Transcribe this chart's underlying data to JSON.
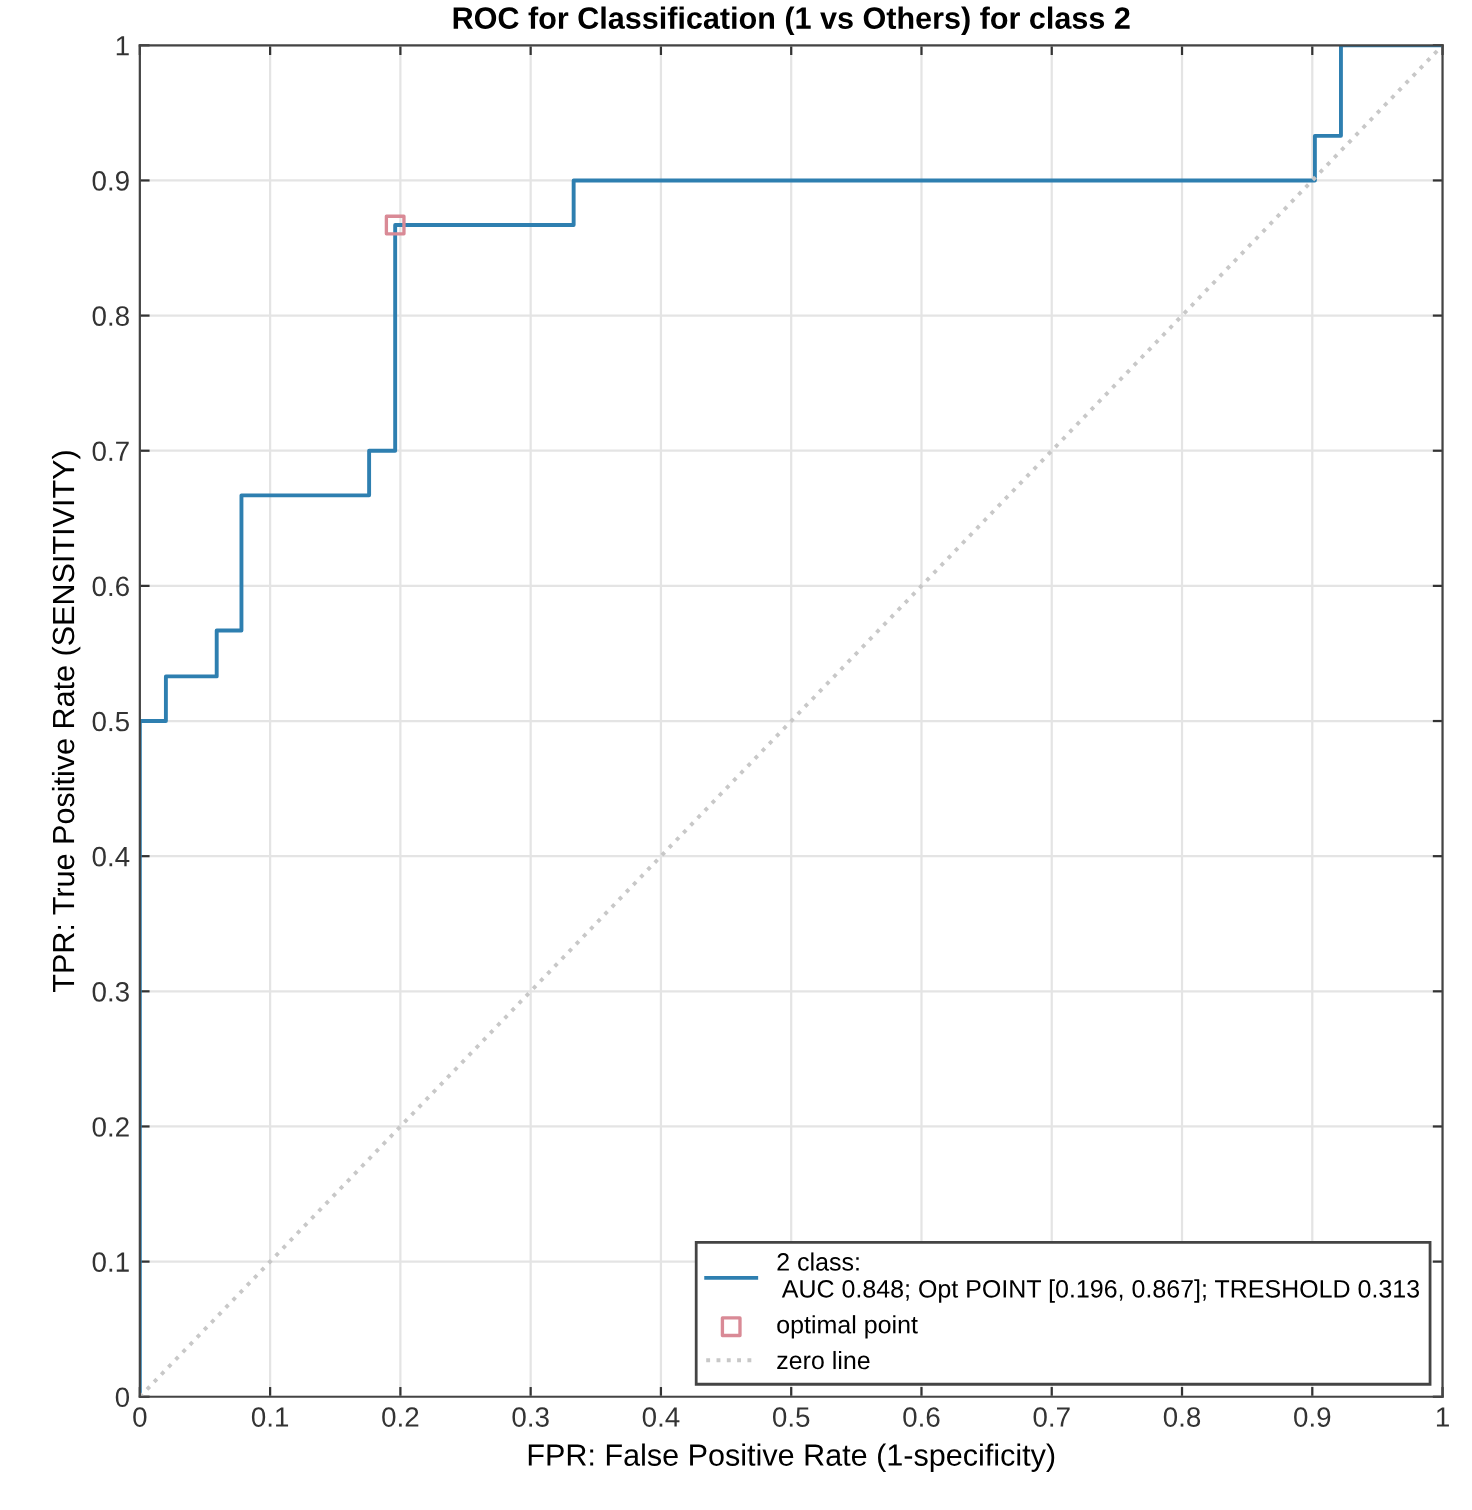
{
  "chart_data": {
    "type": "line",
    "title": "ROC for Classification (1 vs Others) for class 2",
    "xlabel": "FPR: False Positive Rate (1-specificity)",
    "ylabel": "TPR: True Positive Rate (SENSITIVITY)",
    "series": [
      {
        "name": "2 class:\n AUC 0.848; Opt POINT [0.196, 0.867]; TRESHOLD 0.313",
        "color": "#2e7fb0",
        "line_style": "solid",
        "marker": "none",
        "x": [
          0,
          0,
          0.02,
          0.02,
          0.059,
          0.059,
          0.078,
          0.078,
          0.176,
          0.176,
          0.196,
          0.196,
          0.333,
          0.333,
          0.902,
          0.902,
          0.922,
          0.922,
          1
        ],
        "values": [
          0,
          0.5,
          0.5,
          0.533,
          0.533,
          0.567,
          0.567,
          0.667,
          0.667,
          0.7,
          0.7,
          0.867,
          0.867,
          0.9,
          0.9,
          0.933,
          0.933,
          1,
          1
        ]
      },
      {
        "name": "optimal point",
        "type": "scatter",
        "color": "#d98a96",
        "marker": "square",
        "x": [
          0.196
        ],
        "values": [
          0.867
        ]
      },
      {
        "name": "zero line",
        "color": "#c8c8c8",
        "line_style": "dotted",
        "marker": "none",
        "x": [
          0,
          1
        ],
        "values": [
          0,
          1
        ]
      }
    ],
    "xlim": [
      0,
      1
    ],
    "ylim": [
      0,
      1
    ],
    "xticks": [
      0,
      0.1,
      0.2,
      0.3,
      0.4,
      0.5,
      0.6,
      0.7,
      0.8,
      0.9,
      1
    ],
    "yticks": [
      0,
      0.1,
      0.2,
      0.3,
      0.4,
      0.5,
      0.6,
      0.7,
      0.8,
      0.9,
      1
    ],
    "grid": true,
    "legend": "bottom right"
  }
}
